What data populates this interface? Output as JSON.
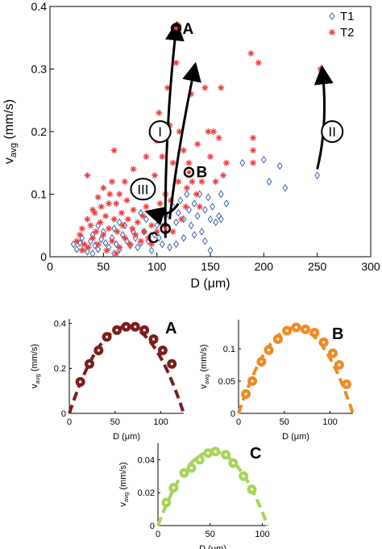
{
  "chart_data": [
    {
      "id": "main",
      "type": "scatter",
      "xlabel": "D (μm)",
      "ylabel_main": "v",
      "ylabel_sub": "avg",
      "ylabel_unit": " (mm/s)",
      "xlim": [
        0,
        300
      ],
      "ylim": [
        0,
        0.4
      ],
      "xticks": [
        0,
        50,
        100,
        150,
        200,
        250,
        300
      ],
      "yticks": [
        0,
        0.1,
        0.2,
        0.3,
        0.4
      ],
      "legend_position": "top-right",
      "series": [
        {
          "name": "T1",
          "marker": "diamond",
          "color": "#3a5fb0",
          "points": [
            [
              22,
              0.02
            ],
            [
              25,
              0.012
            ],
            [
              28,
              0.022
            ],
            [
              30,
              0.03
            ],
            [
              32,
              0.015
            ],
            [
              35,
              0.008
            ],
            [
              38,
              0.025
            ],
            [
              40,
              0.035
            ],
            [
              42,
              0.018
            ],
            [
              45,
              0.012
            ],
            [
              48,
              0.028
            ],
            [
              50,
              0.04
            ],
            [
              52,
              0.022
            ],
            [
              55,
              0.015
            ],
            [
              58,
              0.03
            ],
            [
              60,
              0.045
            ],
            [
              62,
              0.02
            ],
            [
              65,
              0.012
            ],
            [
              68,
              0.035
            ],
            [
              70,
              0.05
            ],
            [
              72,
              0.025
            ],
            [
              75,
              0.018
            ],
            [
              78,
              0.04
            ],
            [
              80,
              0.03
            ],
            [
              82,
              0.015
            ],
            [
              85,
              0.022
            ],
            [
              88,
              0.04
            ],
            [
              90,
              0.06
            ],
            [
              92,
              0.025
            ],
            [
              95,
              0.01
            ],
            [
              98,
              0.035
            ],
            [
              100,
              0.05
            ],
            [
              102,
              0.03
            ],
            [
              105,
              0.02
            ],
            [
              108,
              0.065
            ],
            [
              110,
              0.045
            ],
            [
              112,
              0.015
            ],
            [
              115,
              0.08
            ],
            [
              118,
              0.055
            ],
            [
              120,
              0.07
            ],
            [
              122,
              0.09
            ],
            [
              125,
              0.06
            ],
            [
              128,
              0.1
            ],
            [
              130,
              0.075
            ],
            [
              132,
              0.05
            ],
            [
              135,
              0.085
            ],
            [
              138,
              0.065
            ],
            [
              140,
              0.1
            ],
            [
              142,
              0.04
            ],
            [
              145,
              0.075
            ],
            [
              148,
              0.095
            ],
            [
              150,
              0.06
            ],
            [
              152,
              0.08
            ],
            [
              155,
              0.055
            ],
            [
              158,
              0.065
            ],
            [
              160,
              0.1
            ],
            [
              165,
              0.085
            ],
            [
              125,
              0.03
            ],
            [
              135,
              0.035
            ],
            [
              145,
              0.025
            ],
            [
              150,
              0.01
            ],
            [
              118,
              0.02
            ],
            [
              160,
              0.06
            ],
            [
              180,
              0.15
            ],
            [
              200,
              0.155
            ],
            [
              205,
              0.12
            ],
            [
              215,
              0.145
            ],
            [
              220,
              0.11
            ],
            [
              250,
              0.13
            ],
            [
              45,
              0.05
            ],
            [
              65,
              0.055
            ],
            [
              85,
              0.07
            ],
            [
              60,
              0.005
            ],
            [
              40,
              0.005
            ]
          ]
        },
        {
          "name": "T2",
          "marker": "asterisk",
          "color": "#ee3b3b",
          "points": [
            [
              25,
              0.025
            ],
            [
              28,
              0.035
            ],
            [
              30,
              0.045
            ],
            [
              32,
              0.02
            ],
            [
              35,
              0.06
            ],
            [
              36,
              0.015
            ],
            [
              38,
              0.05
            ],
            [
              40,
              0.03
            ],
            [
              42,
              0.07
            ],
            [
              43,
              0.04
            ],
            [
              45,
              0.02
            ],
            [
              47,
              0.055
            ],
            [
              48,
              0.08
            ],
            [
              50,
              0.035
            ],
            [
              52,
              0.065
            ],
            [
              53,
              0.01
            ],
            [
              55,
              0.045
            ],
            [
              56,
              0.1
            ],
            [
              58,
              0.025
            ],
            [
              60,
              0.06
            ],
            [
              62,
              0.085
            ],
            [
              63,
              0.04
            ],
            [
              65,
              0.015
            ],
            [
              67,
              0.07
            ],
            [
              68,
              0.05
            ],
            [
              70,
              0.03
            ],
            [
              72,
              0.09
            ],
            [
              73,
              0.06
            ],
            [
              75,
              0.02
            ],
            [
              77,
              0.045
            ],
            [
              78,
              0.075
            ],
            [
              80,
              0.035
            ],
            [
              82,
              0.055
            ],
            [
              83,
              0.1
            ],
            [
              85,
              0.025
            ],
            [
              87,
              0.065
            ],
            [
              88,
              0.04
            ],
            [
              90,
              0.08
            ],
            [
              92,
              0.03
            ],
            [
              93,
              0.11
            ],
            [
              95,
              0.05
            ],
            [
              97,
              0.07
            ],
            [
              98,
              0.13
            ],
            [
              100,
              0.04
            ],
            [
              102,
              0.06
            ],
            [
              103,
              0.085
            ],
            [
              105,
              0.16
            ],
            [
              107,
              0.05
            ],
            [
              108,
              0.1
            ],
            [
              110,
              0.27
            ],
            [
              112,
              0.21
            ],
            [
              113,
              0.09
            ],
            [
              115,
              0.15
            ],
            [
              118,
              0.31
            ],
            [
              120,
              0.12
            ],
            [
              121,
              0.2
            ],
            [
              123,
              0.06
            ],
            [
              125,
              0.17
            ],
            [
              127,
              0.08
            ],
            [
              128,
              0.11
            ],
            [
              130,
              0.15
            ],
            [
              132,
              0.26
            ],
            [
              133,
              0.12
            ],
            [
              135,
              0.3
            ],
            [
              137,
              0.1
            ],
            [
              138,
              0.18
            ],
            [
              140,
              0.08
            ],
            [
              142,
              0.12
            ],
            [
              145,
              0.27
            ],
            [
              148,
              0.2
            ],
            [
              150,
              0.16
            ],
            [
              153,
              0.2
            ],
            [
              155,
              0.12
            ],
            [
              158,
              0.19
            ],
            [
              160,
              0.27
            ],
            [
              162,
              0.13
            ],
            [
              165,
              0.15
            ],
            [
              188,
              0.325
            ],
            [
              190,
              0.19
            ],
            [
              190,
              0.17
            ],
            [
              190,
              0.15
            ],
            [
              195,
              0.31
            ],
            [
              253,
              0.3
            ],
            [
              35,
              0.13
            ],
            [
              50,
              0.11
            ],
            [
              58,
              0.12
            ],
            [
              65,
              0.1
            ],
            [
              78,
              0.14
            ],
            [
              85,
              0.12
            ],
            [
              60,
              0.17
            ],
            [
              105,
              0.21
            ],
            [
              102,
              0.23
            ],
            [
              120,
              0.37
            ],
            [
              30,
              0.01
            ],
            [
              40,
              0.075
            ],
            [
              55,
              0.085
            ],
            [
              70,
              0.12
            ],
            [
              90,
              0.16
            ],
            [
              100,
              0.185
            ],
            [
              45,
              0.095
            ],
            [
              62,
              0.005
            ],
            [
              95,
              0.02
            ],
            [
              115,
              0.04
            ]
          ]
        }
      ],
      "labeled_points": [
        {
          "label": "A",
          "x": 118,
          "y": 0.365
        },
        {
          "label": "B",
          "x": 130,
          "y": 0.135
        },
        {
          "label": "C",
          "x": 108,
          "y": 0.045
        }
      ],
      "trajectories": [
        {
          "label": "I",
          "from": [
            108,
            0.03
          ],
          "to": [
            118,
            0.365
          ]
        },
        {
          "label": "I",
          "from": [
            112,
            0.06
          ],
          "to": [
            135,
            0.3
          ]
        },
        {
          "label": "II",
          "from": [
            250,
            0.14
          ],
          "to": [
            255,
            0.295
          ]
        },
        {
          "label": "III",
          "from": [
            120,
            0.085
          ],
          "to": [
            95,
            0.07
          ]
        }
      ]
    },
    {
      "id": "A",
      "type": "scatter",
      "panel_label": "A",
      "color": "#7b1d1d",
      "xlabel": "D (μm)",
      "ylabel_main": "v",
      "ylabel_sub": "avg",
      "ylabel_unit": " (mm/s)",
      "xlim": [
        0,
        125
      ],
      "ylim": [
        0,
        0.42
      ],
      "xticks": [
        0,
        50,
        100
      ],
      "yticks": [
        0,
        0.2,
        0.4
      ],
      "fit_vmax": 0.385,
      "fit_D": 125,
      "points": [
        [
          12,
          0.14
        ],
        [
          22,
          0.22
        ],
        [
          32,
          0.28
        ],
        [
          41,
          0.34
        ],
        [
          52,
          0.37
        ],
        [
          62,
          0.385
        ],
        [
          72,
          0.385
        ],
        [
          82,
          0.37
        ],
        [
          92,
          0.33
        ],
        [
          102,
          0.28
        ],
        [
          112,
          0.22
        ]
      ]
    },
    {
      "id": "B",
      "type": "scatter",
      "panel_label": "B",
      "color": "#f08a24",
      "xlabel": "D (μm)",
      "ylabel_main": "v",
      "ylabel_sub": "avg",
      "ylabel_unit": " (mm/s)",
      "xlim": [
        0,
        125
      ],
      "ylim": [
        0,
        0.145
      ],
      "xticks": [
        0,
        50,
        100
      ],
      "yticks": [
        0,
        0.05,
        0.1
      ],
      "fit_vmax": 0.133,
      "fit_D": 125,
      "points": [
        [
          8,
          0.03
        ],
        [
          15,
          0.05
        ],
        [
          25,
          0.08
        ],
        [
          33,
          0.098
        ],
        [
          43,
          0.115
        ],
        [
          53,
          0.128
        ],
        [
          63,
          0.133
        ],
        [
          73,
          0.13
        ],
        [
          83,
          0.125
        ],
        [
          93,
          0.11
        ],
        [
          103,
          0.093
        ],
        [
          110,
          0.075
        ],
        [
          118,
          0.045
        ]
      ]
    },
    {
      "id": "C",
      "type": "scatter",
      "panel_label": "C",
      "color": "#a8d35a",
      "xlabel": "D (μm)",
      "ylabel_main": "v",
      "ylabel_sub": "avg",
      "ylabel_unit": " (mm/s)",
      "xlim": [
        0,
        105
      ],
      "ylim": [
        0,
        0.05
      ],
      "xticks": [
        0,
        50,
        100
      ],
      "yticks": [
        0,
        0.02,
        0.04
      ],
      "fit_vmax": 0.045,
      "fit_D": 105,
      "points": [
        [
          8,
          0.014
        ],
        [
          15,
          0.023
        ],
        [
          25,
          0.032
        ],
        [
          32,
          0.035
        ],
        [
          40,
          0.04
        ],
        [
          48,
          0.044
        ],
        [
          55,
          0.045
        ],
        [
          65,
          0.043
        ],
        [
          72,
          0.038
        ],
        [
          82,
          0.03
        ],
        [
          90,
          0.022
        ]
      ]
    }
  ]
}
